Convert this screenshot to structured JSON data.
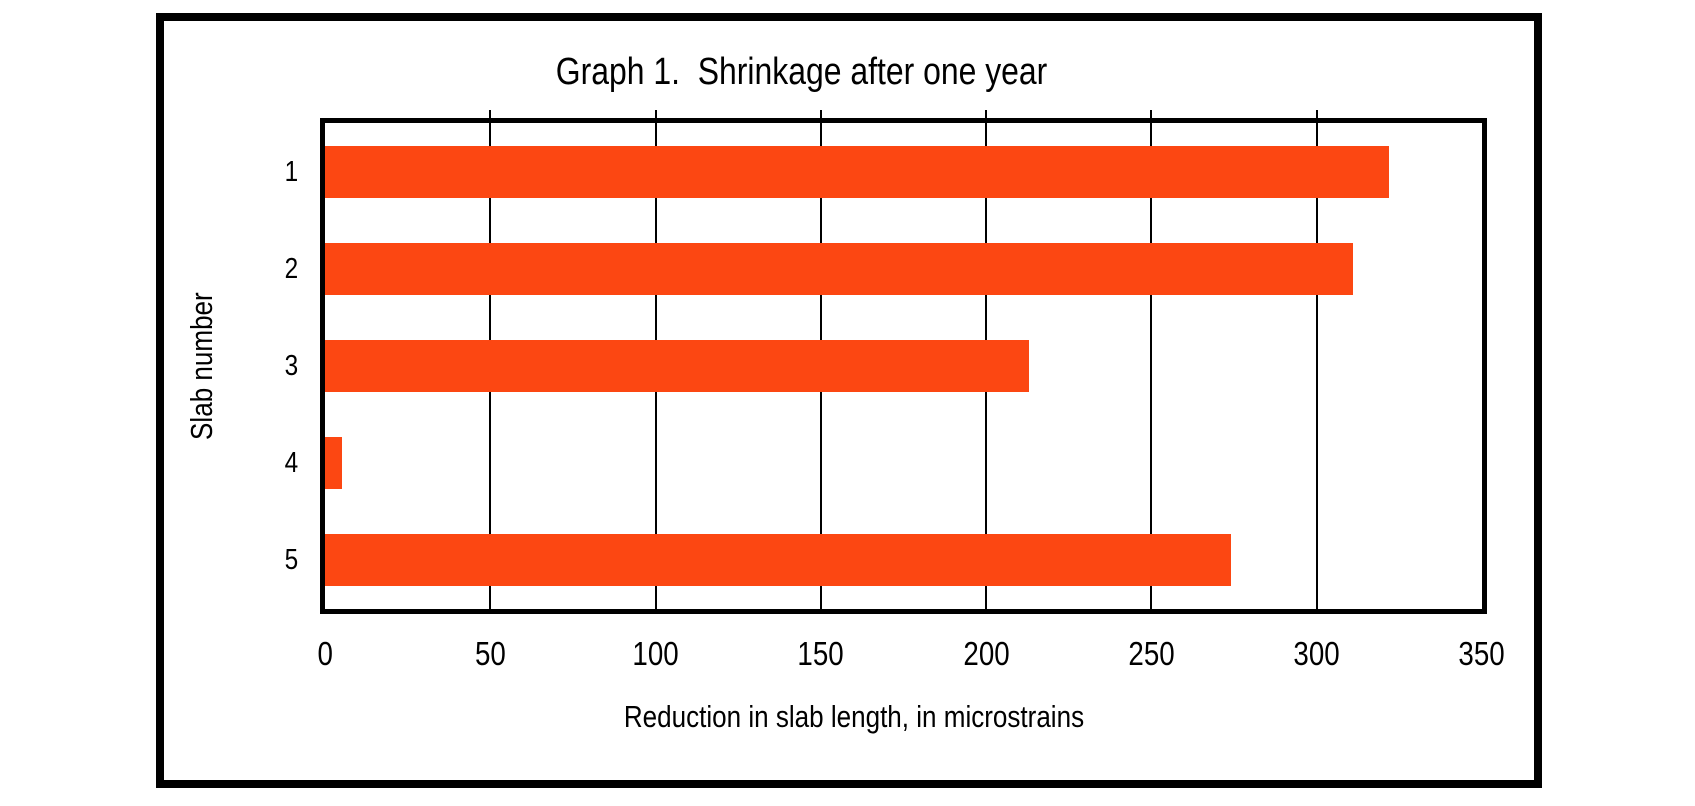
{
  "page": {
    "background": "#FFFFFF",
    "frame_border_color": "#000000"
  },
  "chart_data": {
    "type": "bar",
    "orientation": "horizontal",
    "title": "Graph 1.  Shrinkage after one year",
    "categories": [
      "1",
      "2",
      "3",
      "4",
      "5"
    ],
    "values": [
      322,
      311,
      213,
      5,
      274
    ],
    "xlabel": "Reduction in slab length, in microstrains",
    "ylabel": "Slab number",
    "xlim": [
      0,
      350
    ],
    "xticks": [
      0,
      50,
      100,
      150,
      200,
      250,
      300,
      350
    ],
    "grid": true,
    "legend": false,
    "bar_color": "#FC4712",
    "axis_color": "#000000",
    "gridline_color": "#000000",
    "plot_background": "#FFFFFF"
  }
}
